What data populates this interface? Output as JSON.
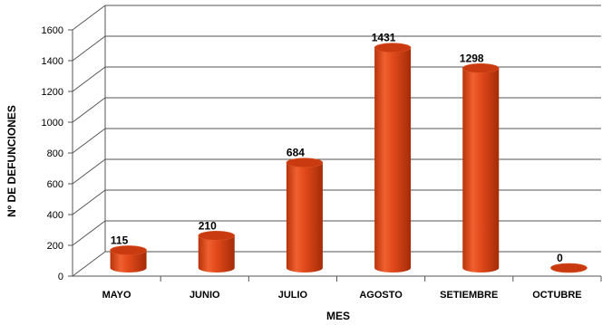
{
  "chart_data": {
    "type": "bar",
    "style": "3d-cylinder",
    "categories": [
      "MAYO",
      "JUNIO",
      "JULIO",
      "AGOSTO",
      "SETIEMBRE",
      "OCTUBRE"
    ],
    "values": [
      115,
      210,
      684,
      1431,
      1298,
      0
    ],
    "data_labels": [
      "115",
      "210",
      "684",
      "1431",
      "1298",
      "0"
    ],
    "xlabel": "MES",
    "ylabel": "Nº DE DEFUNCIONES",
    "ylim": [
      0,
      1600
    ],
    "yticks": [
      0,
      200,
      400,
      600,
      800,
      1000,
      1200,
      1400,
      1600
    ],
    "ytick_labels": [
      "0",
      "200",
      "400",
      "600",
      "800",
      "1000",
      "1200",
      "1400",
      "1600"
    ],
    "grid": true,
    "legend": "none",
    "colors": {
      "bar": "#e0481a",
      "bar_dark": "#a82c08",
      "bar_light": "#f37a45",
      "top": "#c93a10",
      "grid": "#555555"
    }
  }
}
